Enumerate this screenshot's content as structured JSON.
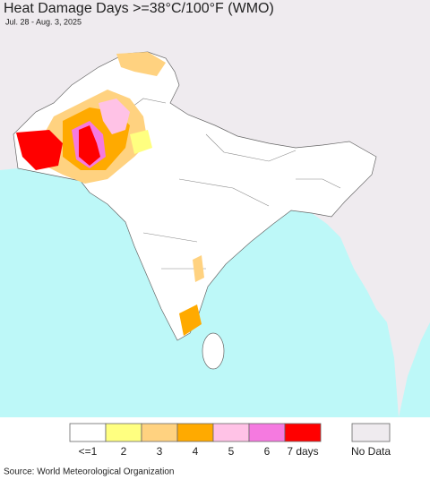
{
  "title": "Heat Damage Days >=38°C/100°F (WMO)",
  "subtitle": "Jul. 28 - Aug. 3, 2025",
  "legend": {
    "items": [
      {
        "label": "<=1",
        "color": "#ffffff"
      },
      {
        "label": "2",
        "color": "#ffff80"
      },
      {
        "label": "3",
        "color": "#ffd280"
      },
      {
        "label": "4",
        "color": "#ffaa00"
      },
      {
        "label": "5",
        "color": "#ffc2e6"
      },
      {
        "label": "6",
        "color": "#f57ae0"
      },
      {
        "label": "7 days",
        "color": "#ff0000"
      }
    ],
    "no_data": {
      "label": "No Data",
      "color": "#efebef"
    }
  },
  "source": "Source: World Meteorological Organization"
}
